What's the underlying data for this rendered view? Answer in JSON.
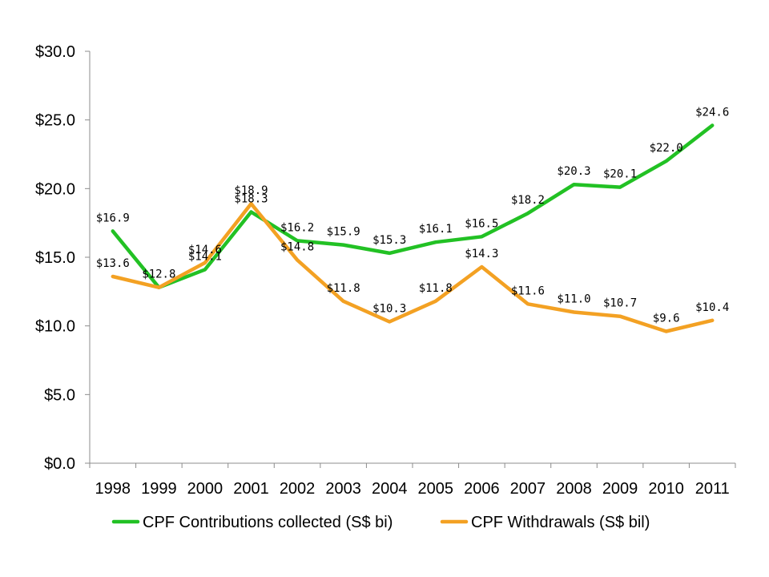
{
  "chart_data": {
    "type": "line",
    "title": "",
    "xlabel": "",
    "ylabel": "",
    "categories": [
      "1998",
      "1999",
      "2000",
      "2001",
      "2002",
      "2003",
      "2004",
      "2005",
      "2006",
      "2007",
      "2008",
      "2009",
      "2010",
      "2011"
    ],
    "ylim": [
      0,
      30
    ],
    "yticks": [
      0,
      5,
      10,
      15,
      20,
      25,
      30
    ],
    "ytick_labels": [
      "$0.0",
      "$5.0",
      "$10.0",
      "$15.0",
      "$20.0",
      "$25.0",
      "$30.0"
    ],
    "grid": false,
    "legend_position": "bottom",
    "series": [
      {
        "name": "CPF Contributions collected (S$ bi)",
        "color": "#22C124",
        "values": [
          16.9,
          12.8,
          14.1,
          18.3,
          16.2,
          15.9,
          15.3,
          16.1,
          16.5,
          18.2,
          20.3,
          20.1,
          22.0,
          24.6
        ],
        "labels": [
          "$16.9",
          "$12.8",
          "$14.1",
          "$18.3",
          "$16.2",
          "$15.9",
          "$15.3",
          "$16.1",
          "$16.5",
          "$18.2",
          "$20.3",
          "$20.1",
          "$22.0",
          "$24.6"
        ]
      },
      {
        "name": "CPF Withdrawals (S$ bil)",
        "color": "#F3A123",
        "values": [
          13.6,
          12.8,
          14.6,
          18.9,
          14.8,
          11.8,
          10.3,
          11.8,
          14.3,
          11.6,
          11.0,
          10.7,
          9.6,
          10.4
        ],
        "labels": [
          "$13.6",
          "",
          "$14.6",
          "$18.9",
          "$14.8",
          "$11.8",
          "$10.3",
          "$11.8",
          "$14.3",
          "$11.6",
          "$11.0",
          "$10.7",
          "$9.6",
          "$10.4"
        ]
      }
    ]
  }
}
